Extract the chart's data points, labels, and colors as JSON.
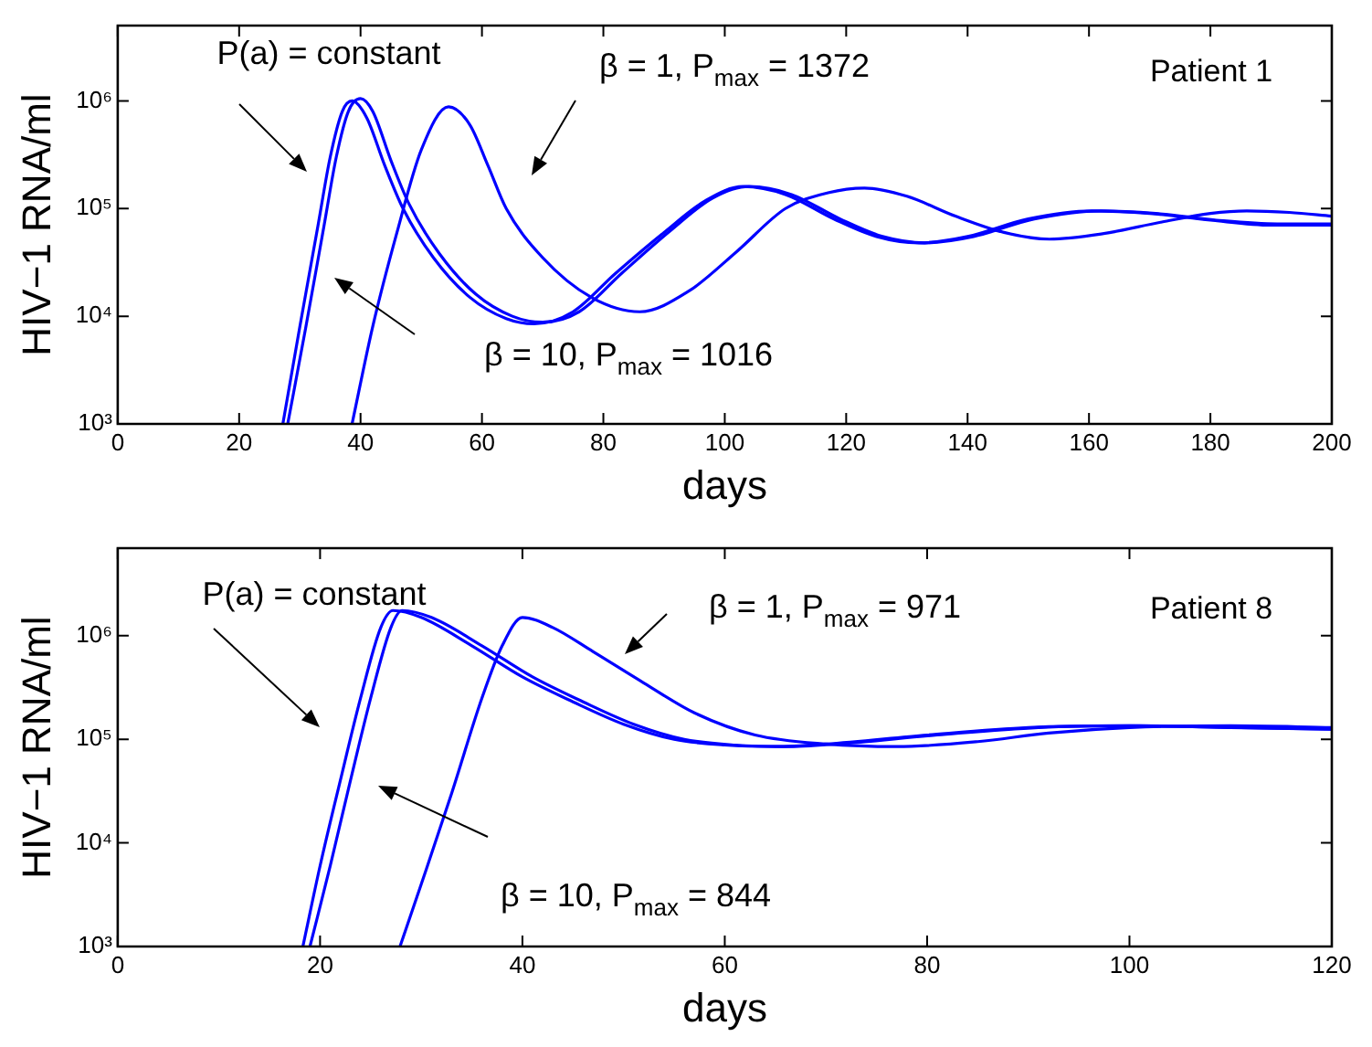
{
  "chart_data": [
    {
      "type": "line",
      "xlabel": "days",
      "ylabel": "HIV−1 RNA/ml",
      "log": "y",
      "grid": false,
      "legend": false,
      "marker": "none",
      "line_style": "solid",
      "xlim": [
        0,
        200
      ],
      "xticks": [
        0,
        20,
        40,
        60,
        80,
        100,
        120,
        140,
        160,
        180,
        200
      ],
      "ylim": [
        1000,
        5000000
      ],
      "yticks": [
        {
          "value": 1000,
          "label": "10³"
        },
        {
          "value": 10000,
          "label": "10⁴"
        },
        {
          "value": 100000,
          "label": "10⁵"
        },
        {
          "value": 1000000,
          "label": "10⁶"
        }
      ],
      "series": [
        {
          "color": "#0000ff",
          "x": [
            27.2,
            30,
            33,
            35,
            37,
            38.6,
            41,
            44,
            47,
            52,
            58,
            64,
            68.6,
            75,
            82,
            90,
            97,
            103,
            110,
            118,
            125,
            132,
            140,
            150,
            160.5,
            170,
            180,
            190,
            200
          ],
          "values": [
            1000,
            8000,
            70000,
            300000,
            800000,
            1000000,
            700000,
            250000,
            100000,
            35000,
            15000,
            9500,
            8500,
            11000,
            25000,
            60000,
            120000,
            160000,
            135000,
            80000,
            55000,
            48000,
            55000,
            80000,
            95000,
            90000,
            78000,
            70000,
            70000
          ]
        },
        {
          "color": "#0000ff",
          "x": [
            28,
            31,
            34,
            36,
            38,
            40,
            42,
            45,
            48,
            53,
            59,
            65,
            70,
            76,
            83,
            91,
            98,
            104,
            111,
            119,
            126,
            133,
            141,
            151,
            162,
            171,
            181,
            191,
            200
          ],
          "values": [
            1000,
            8000,
            70000,
            300000,
            800000,
            1050000,
            800000,
            280000,
            110000,
            38000,
            16000,
            10000,
            8800,
            11000,
            25000,
            62000,
            125000,
            160000,
            135000,
            80000,
            55000,
            48000,
            55000,
            80000,
            95000,
            90000,
            78000,
            72000,
            72000
          ]
        },
        {
          "color": "#0000ff",
          "x": [
            38.6,
            42,
            46,
            50,
            54.5,
            58,
            61,
            64,
            70,
            78,
            86,
            94,
            102,
            110,
            117,
            123,
            130,
            138,
            146,
            153.5,
            162,
            172,
            180,
            186,
            193,
            200
          ],
          "values": [
            1000,
            8000,
            60000,
            350000,
            880000,
            600000,
            250000,
            100000,
            35000,
            15000,
            11000,
            17000,
            40000,
            100000,
            140000,
            155000,
            130000,
            85000,
            60000,
            52000,
            58000,
            75000,
            90000,
            95000,
            92000,
            85000
          ]
        }
      ],
      "annotations": [
        "P(a) = constant",
        "β = 1, P$_{max}$ = 1372",
        "β = 10, P$_{max}$ = 1016",
        "Patient 1"
      ]
    },
    {
      "type": "line",
      "xlabel": "days",
      "ylabel": "HIV−1 RNA/ml",
      "log": "y",
      "grid": false,
      "legend": false,
      "marker": "none",
      "line_style": "solid",
      "xlim": [
        0,
        120
      ],
      "xticks": [
        0,
        20,
        40,
        60,
        80,
        100,
        120
      ],
      "ylim": [
        1000,
        7000000
      ],
      "yticks": [
        {
          "value": 1000,
          "label": "10³"
        },
        {
          "value": 10000,
          "label": "10⁴"
        },
        {
          "value": 100000,
          "label": "10⁵"
        },
        {
          "value": 1000000,
          "label": "10⁶"
        }
      ],
      "series": [
        {
          "color": "#0000ff",
          "x": [
            18.3,
            20,
            22,
            24,
            26,
            27.2,
            30,
            35,
            40,
            45,
            50,
            55,
            60,
            65,
            70,
            80,
            90,
            100,
            110,
            120
          ],
          "values": [
            1000,
            6000,
            40000,
            250000,
            1200000,
            1750000,
            1500000,
            800000,
            400000,
            230000,
            140000,
            100000,
            88000,
            85000,
            90000,
            110000,
            130000,
            135000,
            130000,
            125000
          ]
        },
        {
          "color": "#0000ff",
          "x": [
            19,
            21,
            23,
            25,
            27,
            28.1,
            31,
            36,
            41,
            46,
            51,
            56,
            61,
            66,
            71,
            81,
            91,
            101,
            111,
            120
          ],
          "values": [
            1000,
            6000,
            40000,
            250000,
            1200000,
            1750000,
            1500000,
            800000,
            400000,
            230000,
            140000,
            100000,
            88000,
            85000,
            90000,
            110000,
            130000,
            135000,
            130000,
            125000
          ]
        },
        {
          "color": "#0000ff",
          "x": [
            27.9,
            30,
            33,
            36,
            38,
            40,
            43,
            47,
            52,
            57,
            63,
            70,
            77,
            85,
            92,
            100,
            110,
            120
          ],
          "values": [
            1000,
            4000,
            30000,
            250000,
            800000,
            1500000,
            1200000,
            700000,
            350000,
            180000,
            110000,
            90000,
            85000,
            95000,
            115000,
            130000,
            135000,
            130000
          ]
        }
      ],
      "annotations": [
        "P(a) = constant",
        "β = 1, P$_{max}$ = 971",
        "β = 10, P$_{max}$ = 844",
        "Patient 8"
      ]
    }
  ]
}
